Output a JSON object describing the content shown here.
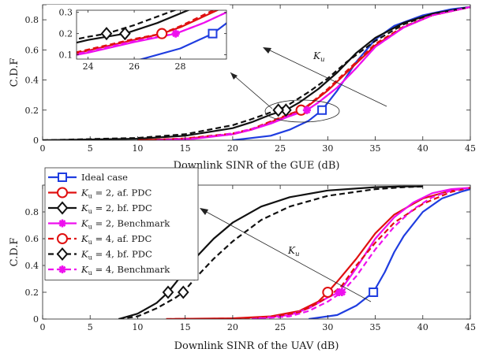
{
  "chart_data": [
    {
      "type": "line",
      "xlabel": "Downlink SINR of the GUE (dB)",
      "ylabel": "C.D.F",
      "xlim": [
        0,
        45
      ],
      "ylim": [
        0,
        0.9
      ],
      "xticks": [
        0,
        5,
        10,
        15,
        20,
        25,
        30,
        35,
        40,
        45
      ],
      "yticks": [
        0,
        0.2,
        0.4,
        0.6,
        0.8
      ],
      "grid": false,
      "annotation": "K_u",
      "series": [
        {
          "name": "Ideal case",
          "color": "#1f3de0",
          "dash": "solid",
          "marker": "square",
          "x": [
            20,
            24,
            26,
            28,
            29.4,
            31,
            33,
            35,
            37,
            40,
            43,
            45
          ],
          "y": [
            0,
            0.03,
            0.07,
            0.13,
            0.2,
            0.33,
            0.52,
            0.67,
            0.76,
            0.83,
            0.87,
            0.885
          ]
        },
        {
          "name": "K_u = 2, af. PDC",
          "color": "#e01010",
          "dash": "solid",
          "marker": "circle",
          "x": [
            10,
            15,
            20,
            22,
            24,
            26,
            27.2,
            28,
            30,
            32,
            35,
            38,
            41,
            45
          ],
          "y": [
            0,
            0.01,
            0.04,
            0.07,
            0.12,
            0.17,
            0.2,
            0.23,
            0.33,
            0.45,
            0.63,
            0.75,
            0.83,
            0.885
          ]
        },
        {
          "name": "K_u = 2, bf. PDC",
          "color": "#111111",
          "dash": "solid",
          "marker": "diamond",
          "x": [
            0,
            10,
            15,
            20,
            22,
            24,
            25.6,
            27,
            29,
            31,
            33,
            35,
            38,
            41,
            45
          ],
          "y": [
            0,
            0.01,
            0.03,
            0.08,
            0.12,
            0.17,
            0.2,
            0.25,
            0.34,
            0.45,
            0.58,
            0.68,
            0.78,
            0.84,
            0.885
          ]
        },
        {
          "name": "K_u = 2, Benchmark",
          "color": "#ee10ee",
          "dash": "solid",
          "marker": "asterisk",
          "x": [
            12,
            16,
            20,
            22,
            24,
            26,
            27.8,
            29,
            31,
            33,
            35,
            38,
            41,
            45
          ],
          "y": [
            0,
            0.01,
            0.04,
            0.07,
            0.11,
            0.16,
            0.2,
            0.25,
            0.35,
            0.48,
            0.62,
            0.75,
            0.83,
            0.885
          ]
        },
        {
          "name": "K_u = 4, af. PDC",
          "color": "#e01010",
          "dash": "dashed",
          "marker": "circle",
          "x": [
            10,
            15,
            20,
            22,
            24,
            26,
            27.2,
            28,
            30,
            32,
            35,
            38,
            41,
            45
          ],
          "y": [
            0,
            0.012,
            0.045,
            0.075,
            0.125,
            0.175,
            0.2,
            0.235,
            0.34,
            0.46,
            0.64,
            0.755,
            0.83,
            0.885
          ]
        },
        {
          "name": "K_u = 4, bf. PDC",
          "color": "#111111",
          "dash": "dashed",
          "marker": "diamond",
          "x": [
            0,
            10,
            15,
            20,
            22,
            24,
            24.8,
            26,
            28,
            30,
            32,
            35,
            38,
            41,
            45
          ],
          "y": [
            0,
            0.015,
            0.04,
            0.1,
            0.14,
            0.185,
            0.2,
            0.24,
            0.32,
            0.41,
            0.52,
            0.66,
            0.77,
            0.84,
            0.885
          ]
        },
        {
          "name": "K_u = 4, Benchmark",
          "color": "#ee10ee",
          "dash": "dashed",
          "marker": "asterisk",
          "x": [
            12,
            16,
            20,
            22,
            24,
            26,
            27.8,
            29,
            31,
            33,
            35,
            38,
            41,
            45
          ],
          "y": [
            0,
            0.012,
            0.045,
            0.075,
            0.115,
            0.165,
            0.2,
            0.25,
            0.35,
            0.48,
            0.62,
            0.75,
            0.83,
            0.885
          ]
        }
      ],
      "inset": {
        "xlim": [
          23.5,
          30
        ],
        "ylim": [
          0.08,
          0.31
        ],
        "xticks": [
          24,
          26,
          28
        ],
        "yticks": [
          0.1,
          0.2,
          0.3
        ]
      }
    },
    {
      "type": "line",
      "xlabel": "Downlink SINR of the UAV (dB)",
      "ylabel": "C.D.F",
      "xlim": [
        0,
        45
      ],
      "ylim": [
        0,
        1
      ],
      "xticks": [
        0,
        5,
        10,
        15,
        20,
        25,
        30,
        35,
        40,
        45
      ],
      "yticks": [
        0,
        0.2,
        0.4,
        0.6,
        0.8
      ],
      "grid": false,
      "annotation": "K_u",
      "legend_position": "top-left",
      "series": [
        {
          "name": "Ideal case",
          "color": "#1f3de0",
          "dash": "solid",
          "marker": "square",
          "x": [
            28,
            31,
            33,
            34.8,
            36,
            37,
            38,
            40,
            42,
            44,
            45
          ],
          "y": [
            0,
            0.03,
            0.1,
            0.2,
            0.35,
            0.5,
            0.62,
            0.8,
            0.9,
            0.95,
            0.97
          ]
        },
        {
          "name": "K_u = 2, af. PDC",
          "color": "#e01010",
          "dash": "solid",
          "marker": "circle",
          "x": [
            13,
            20,
            24,
            27,
            29,
            30,
            31,
            33,
            35,
            37,
            40,
            43,
            45
          ],
          "y": [
            0,
            0.005,
            0.02,
            0.06,
            0.13,
            0.2,
            0.28,
            0.45,
            0.64,
            0.78,
            0.9,
            0.96,
            0.98
          ]
        },
        {
          "name": "K_u = 2, bf. PDC",
          "color": "#111111",
          "dash": "solid",
          "marker": "diamond",
          "x": [
            8,
            10,
            12,
            13.2,
            14,
            16,
            18,
            20,
            23,
            26,
            30,
            35,
            38,
            40
          ],
          "y": [
            0,
            0.04,
            0.12,
            0.2,
            0.27,
            0.45,
            0.6,
            0.72,
            0.84,
            0.91,
            0.96,
            0.985,
            0.99,
            0.99
          ]
        },
        {
          "name": "K_u = 2, Benchmark",
          "color": "#ee10ee",
          "dash": "solid",
          "marker": "asterisk",
          "x": [
            22,
            26,
            28,
            30,
            31.2,
            33,
            35,
            37,
            39,
            41,
            43,
            45
          ],
          "y": [
            0,
            0.03,
            0.08,
            0.16,
            0.2,
            0.38,
            0.6,
            0.76,
            0.87,
            0.94,
            0.97,
            0.98
          ]
        },
        {
          "name": "K_u = 4, af. PDC",
          "color": "#e01010",
          "dash": "dashed",
          "marker": "circle",
          "x": [
            13,
            20,
            24,
            27,
            29,
            30.5,
            31.5,
            33,
            35,
            37,
            40,
            43,
            45
          ],
          "y": [
            0,
            0.004,
            0.015,
            0.05,
            0.12,
            0.19,
            0.25,
            0.4,
            0.57,
            0.72,
            0.86,
            0.95,
            0.98
          ]
        },
        {
          "name": "K_u = 4, bf. PDC",
          "color": "#111111",
          "dash": "dashed",
          "marker": "diamond",
          "x": [
            8,
            10,
            12,
            14,
            14.8,
            16,
            18,
            20,
            23,
            26,
            30,
            35,
            38,
            40
          ],
          "y": [
            0,
            0.02,
            0.08,
            0.16,
            0.2,
            0.3,
            0.45,
            0.58,
            0.74,
            0.84,
            0.92,
            0.97,
            0.985,
            0.99
          ]
        },
        {
          "name": "K_u = 4, Benchmark",
          "color": "#ee10ee",
          "dash": "dashed",
          "marker": "asterisk",
          "x": [
            22,
            26,
            28,
            30,
            31.5,
            33,
            35,
            37,
            39,
            41,
            43,
            45
          ],
          "y": [
            0,
            0.02,
            0.06,
            0.13,
            0.2,
            0.32,
            0.52,
            0.69,
            0.82,
            0.91,
            0.96,
            0.98
          ]
        }
      ]
    }
  ],
  "legend": {
    "entries": [
      {
        "base": "Ideal case",
        "sub": "",
        "suffix": ""
      },
      {
        "base": "K",
        "sub": "u",
        "suffix": " = 2, af. PDC"
      },
      {
        "base": "K",
        "sub": "u",
        "suffix": " = 2, bf. PDC"
      },
      {
        "base": "K",
        "sub": "u",
        "suffix": " = 2, Benchmark"
      },
      {
        "base": "K",
        "sub": "u",
        "suffix": " = 4, af. PDC"
      },
      {
        "base": "K",
        "sub": "u",
        "suffix": " = 4, bf. PDC"
      },
      {
        "base": "K",
        "sub": "u",
        "suffix": " = 4, Benchmark"
      }
    ]
  }
}
